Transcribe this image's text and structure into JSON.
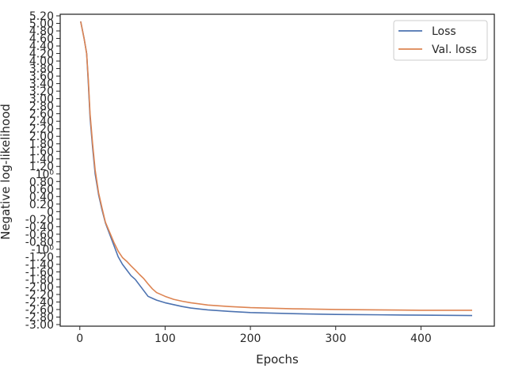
{
  "chart_data": {
    "type": "line",
    "title": "",
    "xlabel": "Epochs",
    "ylabel": "Negative log-likelihood",
    "xlim": [
      -23,
      486
    ],
    "x_ticks": [
      0,
      100,
      200,
      300,
      400
    ],
    "y_ticks": [
      {
        "value": 5.2,
        "label": "5.20"
      },
      {
        "value": 5.0,
        "label": "5.00"
      },
      {
        "value": 4.8,
        "label": "4.80"
      },
      {
        "value": 4.6,
        "label": "4.60"
      },
      {
        "value": 4.4,
        "label": "4.40"
      },
      {
        "value": 4.2,
        "label": "4.20"
      },
      {
        "value": 4.0,
        "label": "4.00"
      },
      {
        "value": 3.8,
        "label": "3.80"
      },
      {
        "value": 3.6,
        "label": "3.60"
      },
      {
        "value": 3.4,
        "label": "3.40"
      },
      {
        "value": 3.2,
        "label": "3.20"
      },
      {
        "value": 3.0,
        "label": "3.00"
      },
      {
        "value": 2.8,
        "label": "2.80"
      },
      {
        "value": 2.6,
        "label": "2.60"
      },
      {
        "value": 2.4,
        "label": "2.40"
      },
      {
        "value": 2.2,
        "label": "2.20"
      },
      {
        "value": 2.0,
        "label": "2.00"
      },
      {
        "value": 1.8,
        "label": "1.80"
      },
      {
        "value": 1.6,
        "label": "1.60"
      },
      {
        "value": 1.4,
        "label": "1.40"
      },
      {
        "value": 1.2,
        "label": "1.20"
      },
      {
        "value": 1.0,
        "label": "10⁰"
      },
      {
        "value": 0.8,
        "label": "0.80"
      },
      {
        "value": 0.6,
        "label": "0.60"
      },
      {
        "value": 0.4,
        "label": "0.40"
      },
      {
        "value": 0.2,
        "label": "0.20"
      },
      {
        "value": 0.0,
        "label": "0"
      },
      {
        "value": -0.2,
        "label": "-0.20"
      },
      {
        "value": -0.4,
        "label": "-0.40"
      },
      {
        "value": -0.6,
        "label": "-0.60"
      },
      {
        "value": -0.8,
        "label": "-0.80"
      },
      {
        "value": -1.0,
        "label": "-10⁰"
      },
      {
        "value": -1.2,
        "label": "-1.20"
      },
      {
        "value": -1.4,
        "label": "-1.40"
      },
      {
        "value": -1.6,
        "label": "-1.60"
      },
      {
        "value": -1.8,
        "label": "-1.80"
      },
      {
        "value": -2.0,
        "label": "-2.00"
      },
      {
        "value": -2.2,
        "label": "-2.20"
      },
      {
        "value": -2.4,
        "label": "-2.40"
      },
      {
        "value": -2.6,
        "label": "-2.60"
      },
      {
        "value": -2.8,
        "label": "-2.80"
      },
      {
        "value": -3.0,
        "label": "-3.00"
      }
    ],
    "legend_position": "top-right",
    "series": [
      {
        "name": "Loss",
        "color": "#4c72b0",
        "x": [
          1,
          5,
          8,
          10,
          12,
          15,
          18,
          22,
          26,
          30,
          35,
          40,
          45,
          50,
          55,
          60,
          65,
          70,
          75,
          80,
          85,
          90,
          100,
          110,
          120,
          130,
          150,
          175,
          200,
          250,
          300,
          350,
          400,
          460
        ],
        "y": [
          5.05,
          4.6,
          4.2,
          3.4,
          2.5,
          1.7,
          1.0,
          0.45,
          0.05,
          -0.3,
          -0.6,
          -0.9,
          -1.2,
          -1.4,
          -1.55,
          -1.7,
          -1.8,
          -1.95,
          -2.1,
          -2.25,
          -2.3,
          -2.35,
          -2.42,
          -2.47,
          -2.52,
          -2.56,
          -2.61,
          -2.65,
          -2.68,
          -2.71,
          -2.73,
          -2.74,
          -2.75,
          -2.76
        ]
      },
      {
        "name": "Val. loss",
        "color": "#dd8452",
        "x": [
          1,
          5,
          8,
          10,
          12,
          15,
          18,
          22,
          26,
          30,
          35,
          40,
          45,
          50,
          55,
          60,
          65,
          70,
          75,
          80,
          85,
          90,
          100,
          110,
          120,
          130,
          150,
          175,
          200,
          250,
          300,
          350,
          400,
          460
        ],
        "y": [
          5.05,
          4.6,
          4.2,
          3.5,
          2.6,
          1.8,
          1.1,
          0.5,
          0.1,
          -0.28,
          -0.55,
          -0.82,
          -1.05,
          -1.22,
          -1.32,
          -1.44,
          -1.55,
          -1.67,
          -1.78,
          -1.92,
          -2.05,
          -2.15,
          -2.25,
          -2.33,
          -2.38,
          -2.42,
          -2.48,
          -2.52,
          -2.55,
          -2.58,
          -2.6,
          -2.61,
          -2.62,
          -2.62
        ]
      }
    ]
  }
}
